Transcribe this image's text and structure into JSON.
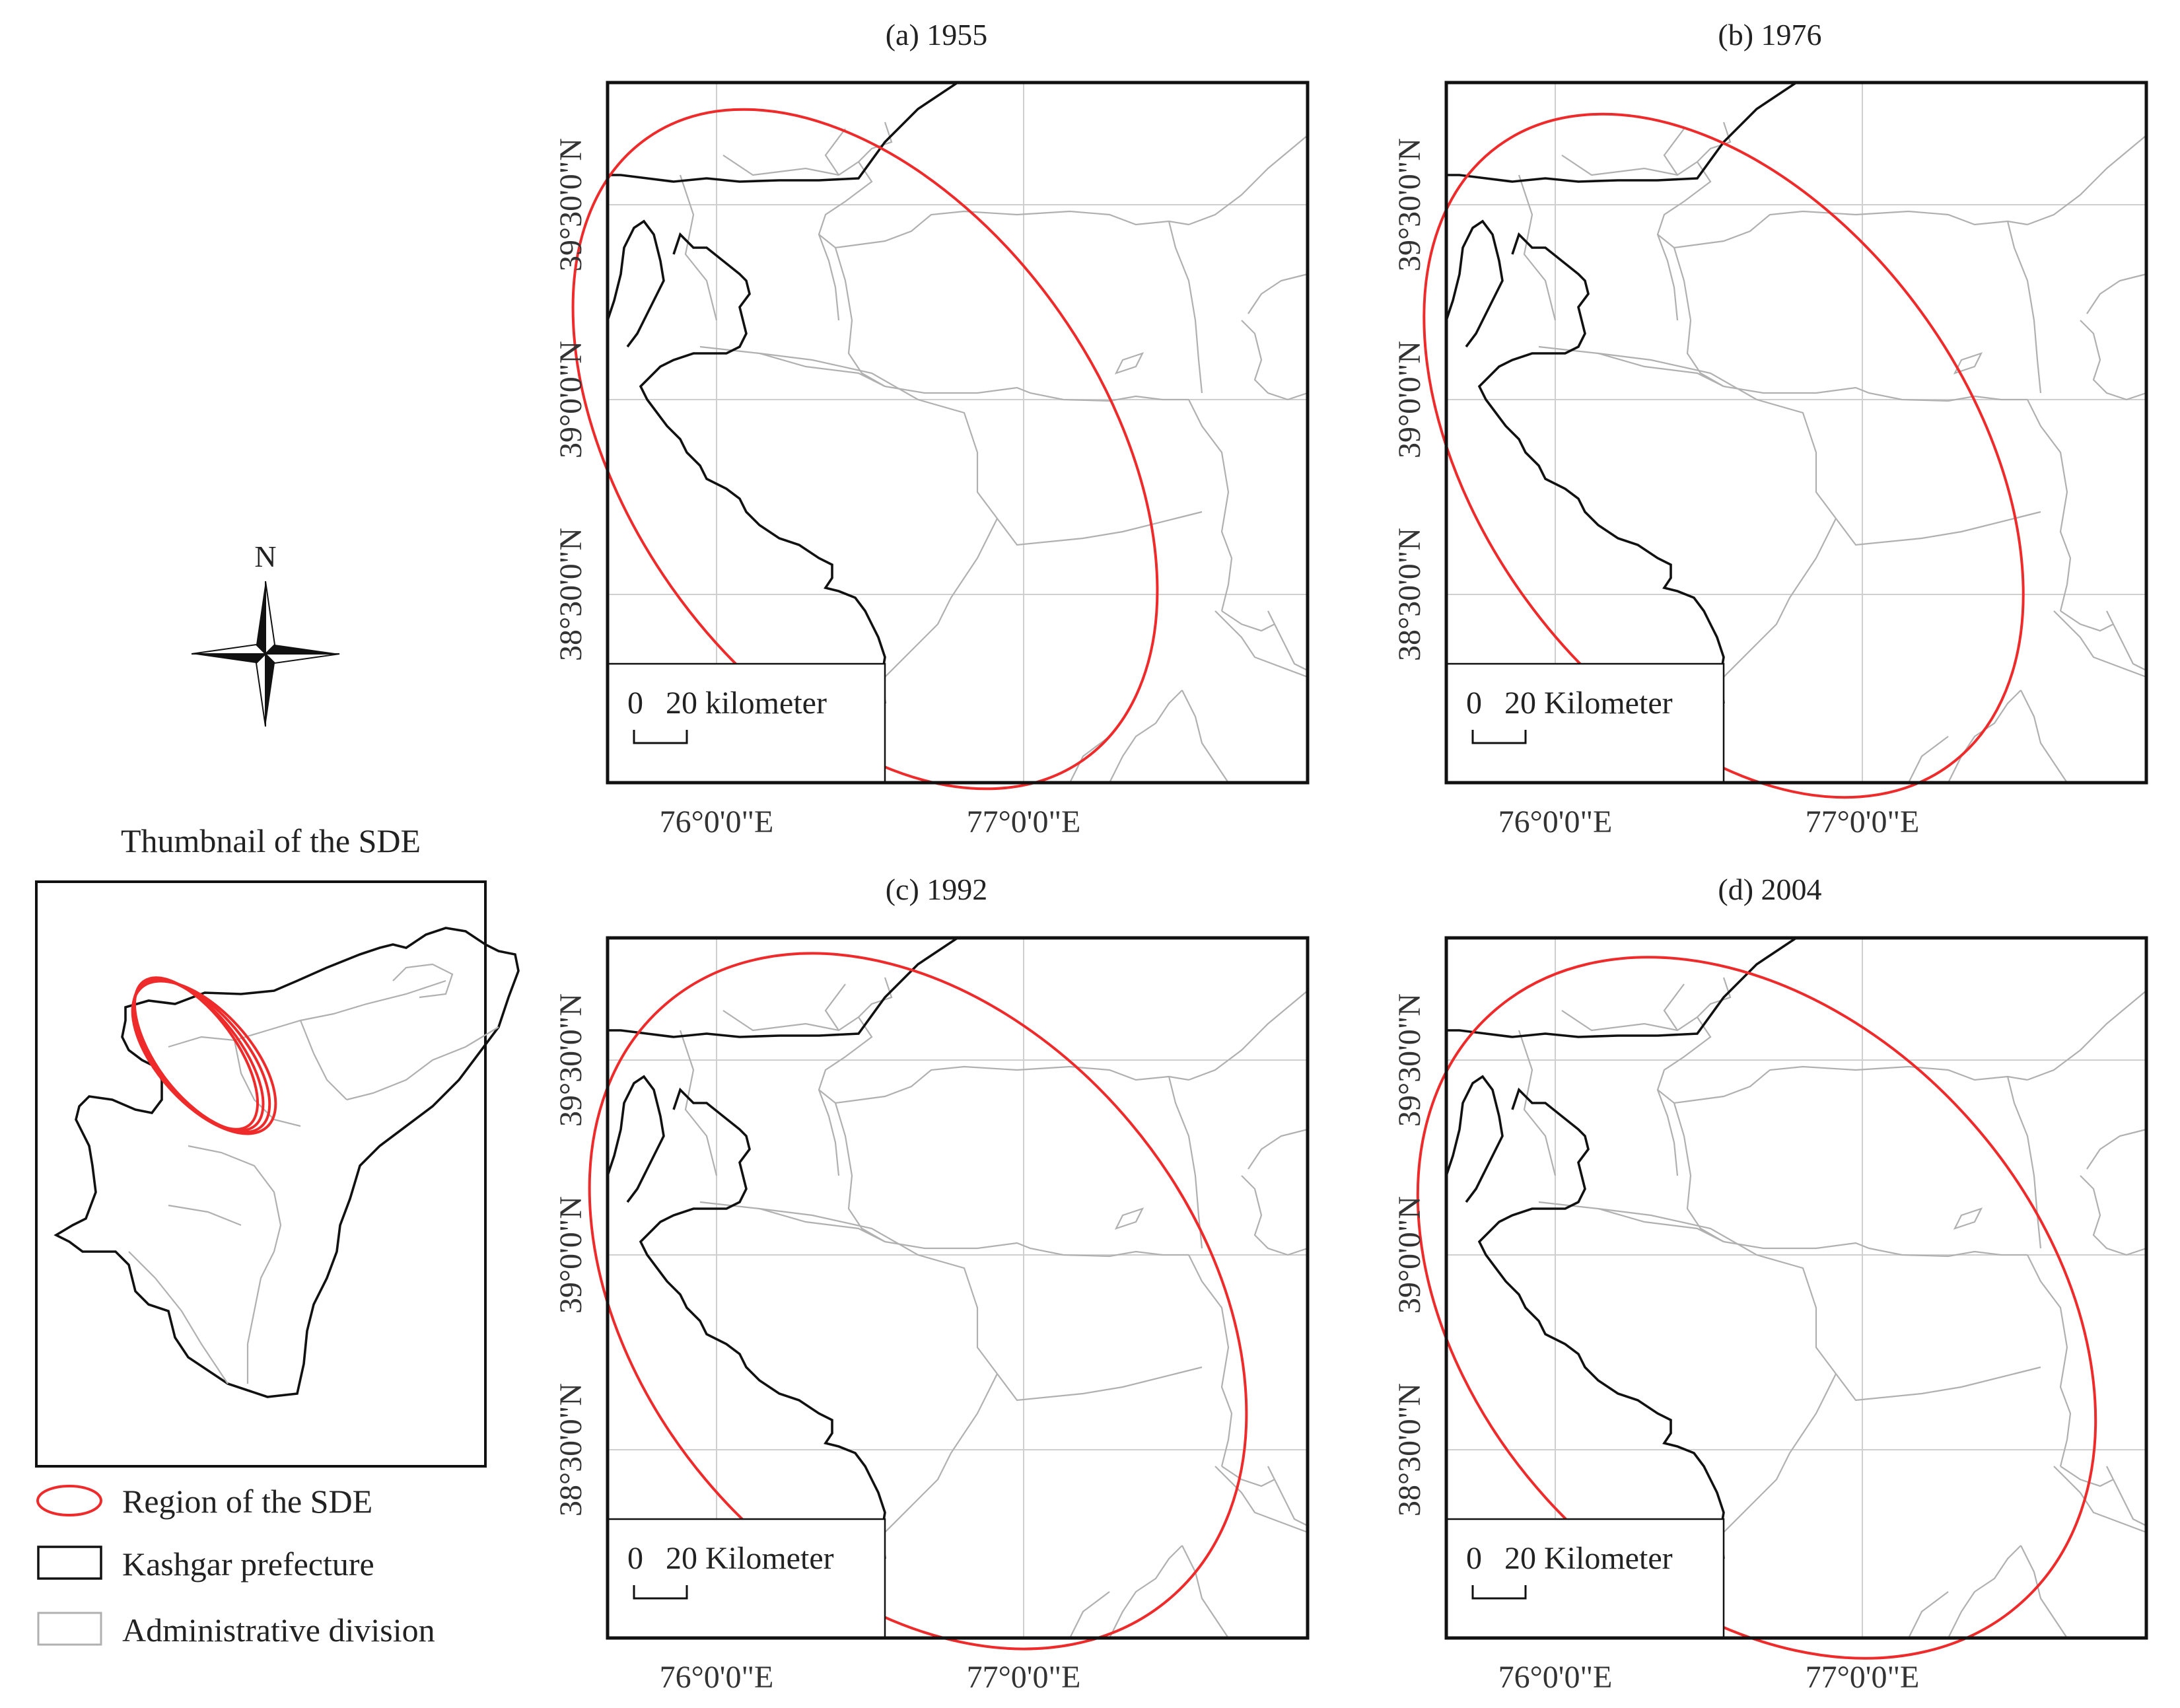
{
  "figure": {
    "north_label": "N",
    "thumbnail_title": "Thumbnail of the SDE",
    "panels": [
      {
        "id": "a",
        "title": "(a) 1955",
        "scale_zero": "0",
        "scale_label": "20 kilometer"
      },
      {
        "id": "b",
        "title": "(b) 1976",
        "scale_zero": "0",
        "scale_label": "20 Kilometer"
      },
      {
        "id": "c",
        "title": "(c) 1992",
        "scale_zero": "0",
        "scale_label": "20 Kilometer"
      },
      {
        "id": "d",
        "title": "(d) 2004",
        "scale_zero": "0",
        "scale_label": "20 Kilometer"
      }
    ],
    "lat_labels": [
      "39°30'0\"N",
      "39°0'0\"N",
      "38°30'0\"N"
    ],
    "lon_labels": [
      "76°0'0\"E",
      "77°0'0\"E"
    ],
    "legend": [
      {
        "symbol": "red-ellipse",
        "label": "Region of the SDE"
      },
      {
        "symbol": "black-box",
        "label": "Kashgar prefecture"
      },
      {
        "symbol": "gray-box",
        "label": "Administrative division"
      }
    ],
    "colors": {
      "sde": "#ee2a2a",
      "prefecture": "#111111",
      "admin": "#b0b0b0",
      "grid": "#cfcfcf"
    }
  }
}
